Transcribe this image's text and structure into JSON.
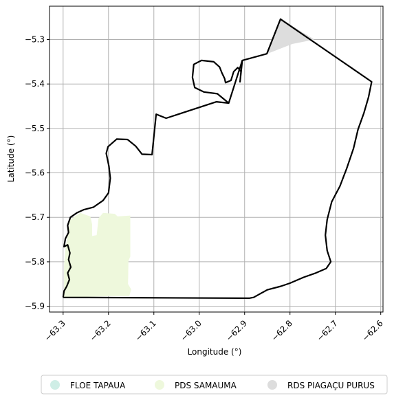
{
  "chart_data": {
    "type": "map",
    "xlabel": "Longitude (°)",
    "ylabel": "Latitude (°)",
    "xlim": [
      -63.33,
      -62.595
    ],
    "ylim": [
      -5.913,
      -5.225
    ],
    "xticks": [
      -63.3,
      -63.2,
      -63.1,
      -63.0,
      -62.9,
      -62.8,
      -62.7,
      -62.6
    ],
    "xtick_labels": [
      "−63.3",
      "−63.2",
      "−63.1",
      "−63.0",
      "−62.9",
      "−62.8",
      "−62.7",
      "−62.6"
    ],
    "yticks": [
      -5.3,
      -5.4,
      -5.5,
      -5.6,
      -5.7,
      -5.8,
      -5.9
    ],
    "ytick_labels": [
      "−5.3",
      "−5.4",
      "−5.5",
      "−5.6",
      "−5.7",
      "−5.8",
      "−5.9"
    ],
    "grid": true,
    "legend_placement": "bottom-center",
    "legend": [
      {
        "label": "FLOE TAPAUA",
        "color": "#cfeee6"
      },
      {
        "label": "PDS SAMAUMA",
        "color": "#eef8dc"
      },
      {
        "label": "RDS PIAGAÇU PURUS",
        "color": "#dddddd"
      }
    ],
    "areas": [
      {
        "legend_index": 1,
        "color": "#eef8dc",
        "points": [
          [
            -63.298,
            -5.88
          ],
          [
            -63.298,
            -5.81
          ],
          [
            -63.295,
            -5.77
          ],
          [
            -63.29,
            -5.74
          ],
          [
            -63.285,
            -5.705
          ],
          [
            -63.262,
            -5.69
          ],
          [
            -63.24,
            -5.698
          ],
          [
            -63.236,
            -5.716
          ],
          [
            -63.236,
            -5.742
          ],
          [
            -63.226,
            -5.74
          ],
          [
            -63.222,
            -5.702
          ],
          [
            -63.212,
            -5.69
          ],
          [
            -63.186,
            -5.692
          ],
          [
            -63.18,
            -5.698
          ],
          [
            -63.152,
            -5.696
          ],
          [
            -63.152,
            -5.788
          ],
          [
            -63.156,
            -5.798
          ],
          [
            -63.157,
            -5.85
          ],
          [
            -63.15,
            -5.862
          ],
          [
            -63.154,
            -5.877
          ],
          [
            -63.19,
            -5.877
          ],
          [
            -63.26,
            -5.879
          ]
        ]
      },
      {
        "legend_index": 2,
        "color": "#dddddd",
        "points": [
          [
            -62.82,
            -5.254
          ],
          [
            -62.746,
            -5.3
          ],
          [
            -62.795,
            -5.31
          ],
          [
            -62.85,
            -5.332
          ],
          [
            -62.838,
            -5.3
          ]
        ]
      }
    ],
    "outline": {
      "color": "#000000",
      "points": [
        [
          -63.3,
          -5.88
        ],
        [
          -63.298,
          -5.866
        ],
        [
          -63.292,
          -5.855
        ],
        [
          -63.286,
          -5.84
        ],
        [
          -63.29,
          -5.825
        ],
        [
          -63.283,
          -5.812
        ],
        [
          -63.288,
          -5.795
        ],
        [
          -63.285,
          -5.78
        ],
        [
          -63.29,
          -5.762
        ],
        [
          -63.298,
          -5.766
        ],
        [
          -63.295,
          -5.748
        ],
        [
          -63.288,
          -5.734
        ],
        [
          -63.29,
          -5.718
        ],
        [
          -63.284,
          -5.7
        ],
        [
          -63.27,
          -5.69
        ],
        [
          -63.255,
          -5.683
        ],
        [
          -63.233,
          -5.677
        ],
        [
          -63.212,
          -5.662
        ],
        [
          -63.2,
          -5.645
        ],
        [
          -63.196,
          -5.612
        ],
        [
          -63.199,
          -5.585
        ],
        [
          -63.205,
          -5.556
        ],
        [
          -63.201,
          -5.541
        ],
        [
          -63.182,
          -5.524
        ],
        [
          -63.158,
          -5.525
        ],
        [
          -63.14,
          -5.54
        ],
        [
          -63.126,
          -5.558
        ],
        [
          -63.104,
          -5.559
        ],
        [
          -63.095,
          -5.468
        ],
        [
          -63.073,
          -5.477
        ],
        [
          -62.962,
          -5.44
        ],
        [
          -62.935,
          -5.443
        ],
        [
          -62.905,
          -5.347
        ],
        [
          -62.851,
          -5.332
        ],
        [
          -62.821,
          -5.254
        ],
        [
          -62.62,
          -5.395
        ],
        [
          -62.627,
          -5.43
        ],
        [
          -62.637,
          -5.465
        ],
        [
          -62.65,
          -5.502
        ],
        [
          -62.66,
          -5.545
        ],
        [
          -62.675,
          -5.59
        ],
        [
          -62.69,
          -5.63
        ],
        [
          -62.708,
          -5.665
        ],
        [
          -62.718,
          -5.705
        ],
        [
          -62.722,
          -5.74
        ],
        [
          -62.718,
          -5.775
        ],
        [
          -62.71,
          -5.8
        ],
        [
          -62.72,
          -5.815
        ],
        [
          -62.745,
          -5.826
        ],
        [
          -62.77,
          -5.835
        ],
        [
          -62.8,
          -5.848
        ],
        [
          -62.82,
          -5.855
        ],
        [
          -62.85,
          -5.863
        ],
        [
          -62.88,
          -5.88
        ],
        [
          -62.89,
          -5.882
        ],
        [
          -63.3,
          -5.88
        ]
      ]
    },
    "inner_loop": {
      "color": "#000000",
      "points": [
        [
          -62.935,
          -5.443
        ],
        [
          -62.96,
          -5.422
        ],
        [
          -62.99,
          -5.418
        ],
        [
          -63.01,
          -5.408
        ],
        [
          -63.015,
          -5.385
        ],
        [
          -63.012,
          -5.356
        ],
        [
          -62.995,
          -5.347
        ],
        [
          -62.968,
          -5.35
        ],
        [
          -62.955,
          -5.362
        ],
        [
          -62.95,
          -5.375
        ],
        [
          -62.944,
          -5.388
        ],
        [
          -62.942,
          -5.397
        ],
        [
          -62.93,
          -5.392
        ],
        [
          -62.924,
          -5.372
        ],
        [
          -62.915,
          -5.363
        ],
        [
          -62.908,
          -5.372
        ],
        [
          -62.91,
          -5.395
        ],
        [
          -62.905,
          -5.347
        ]
      ]
    }
  }
}
